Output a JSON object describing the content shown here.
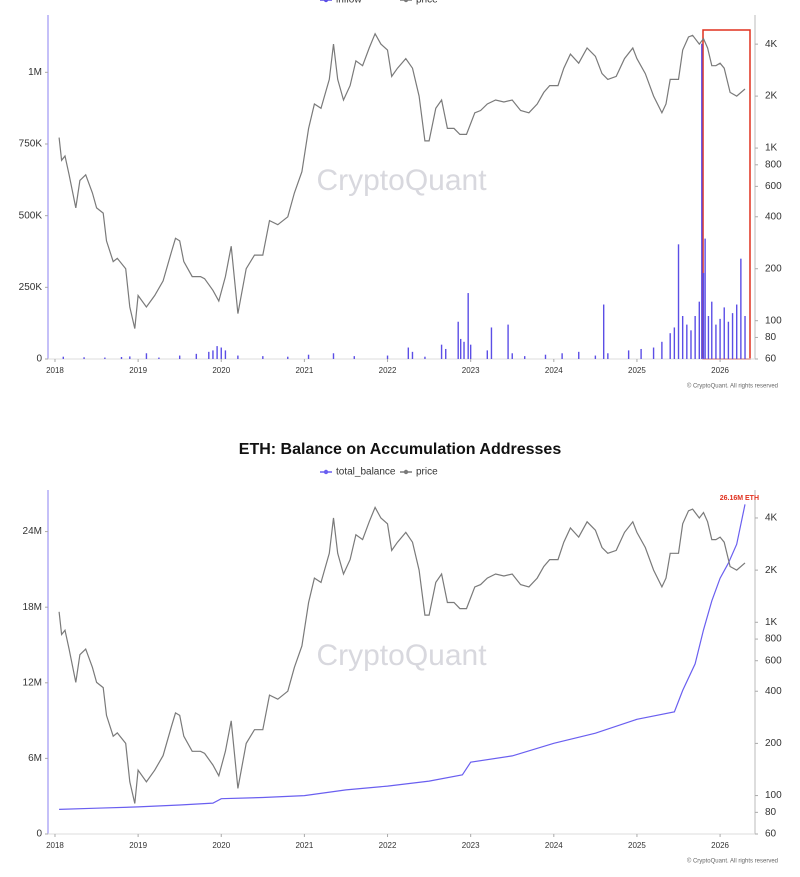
{
  "chart_data": [
    {
      "type": "combo",
      "legend": "top",
      "legend_cut": true,
      "watermark": "CryptoQuant",
      "footer": "© CryptoQuant. All rights reserved",
      "xlim": [
        2017.916,
        2026.42
      ],
      "xticks": [
        2018,
        2019,
        2020,
        2021,
        2022,
        2023,
        2024,
        2025,
        2026
      ],
      "ylim": [
        0,
        1200000
      ],
      "yticks": [
        0,
        {
          "value": 250000,
          "label": "250K"
        },
        {
          "value": 500000,
          "label": "500K"
        },
        {
          "value": 750000,
          "label": "750K"
        },
        {
          "value": 1000000,
          "label": "1M"
        }
      ],
      "y2lim": [
        60,
        5900
      ],
      "y2log": true,
      "y2ticks": [
        60,
        80,
        100,
        200,
        400,
        600,
        800,
        {
          "value": 1000,
          "label": "1K"
        },
        {
          "value": 2000,
          "label": "2K"
        },
        {
          "value": 4000,
          "label": "4K"
        }
      ],
      "series": [
        {
          "name": "inflow",
          "type": "bar",
          "color": "#5b4ee6",
          "x": [
            2018.1,
            2018.35,
            2018.6,
            2018.8,
            2018.9,
            2019.1,
            2019.25,
            2019.5,
            2019.7,
            2019.85,
            2019.9,
            2019.95,
            2020.0,
            2020.05,
            2020.2,
            2020.5,
            2020.8,
            2021.05,
            2021.35,
            2021.6,
            2022.0,
            2022.25,
            2022.3,
            2022.45,
            2022.65,
            2022.7,
            2022.85,
            2022.88,
            2022.92,
            2022.97,
            2023.0,
            2023.2,
            2023.25,
            2023.45,
            2023.5,
            2023.65,
            2023.9,
            2024.1,
            2024.3,
            2024.5,
            2024.6,
            2024.65,
            2024.9,
            2025.05,
            2025.2,
            2025.3,
            2025.4,
            2025.45,
            2025.5,
            2025.55,
            2025.6,
            2025.65,
            2025.7,
            2025.75,
            2025.78,
            2025.8,
            2025.82,
            2025.86,
            2025.9,
            2025.95,
            2026.0,
            2026.05,
            2026.1,
            2026.15,
            2026.2,
            2026.25,
            2026.3
          ],
          "values": [
            8000,
            6000,
            5000,
            7000,
            9000,
            20000,
            5000,
            12000,
            18000,
            25000,
            30000,
            45000,
            40000,
            30000,
            12000,
            10000,
            8000,
            15000,
            20000,
            10000,
            12000,
            40000,
            25000,
            8000,
            50000,
            35000,
            130000,
            70000,
            60000,
            230000,
            50000,
            30000,
            110000,
            120000,
            20000,
            10000,
            15000,
            20000,
            25000,
            12000,
            190000,
            20000,
            30000,
            35000,
            40000,
            60000,
            90000,
            110000,
            400000,
            150000,
            120000,
            100000,
            150000,
            200000,
            1100000,
            300000,
            420000,
            150000,
            200000,
            120000,
            140000,
            180000,
            130000,
            160000,
            190000,
            350000,
            150000
          ]
        },
        {
          "name": "price",
          "type": "line",
          "color": "#7a7a7a",
          "axis": "y2",
          "x": [
            2018.05,
            2018.08,
            2018.12,
            2018.17,
            2018.25,
            2018.3,
            2018.37,
            2018.45,
            2018.5,
            2018.58,
            2018.62,
            2018.7,
            2018.75,
            2018.85,
            2018.9,
            2018.96,
            2019.0,
            2019.1,
            2019.2,
            2019.3,
            2019.4,
            2019.45,
            2019.5,
            2019.55,
            2019.65,
            2019.75,
            2019.8,
            2019.9,
            2019.97,
            2020.05,
            2020.12,
            2020.2,
            2020.3,
            2020.4,
            2020.5,
            2020.58,
            2020.68,
            2020.8,
            2020.88,
            2020.97,
            2021.05,
            2021.12,
            2021.2,
            2021.3,
            2021.35,
            2021.4,
            2021.47,
            2021.55,
            2021.62,
            2021.7,
            2021.78,
            2021.85,
            2021.92,
            2022.0,
            2022.05,
            2022.12,
            2022.22,
            2022.3,
            2022.38,
            2022.45,
            2022.5,
            2022.58,
            2022.65,
            2022.72,
            2022.8,
            2022.87,
            2022.95,
            2023.05,
            2023.12,
            2023.2,
            2023.3,
            2023.4,
            2023.5,
            2023.6,
            2023.7,
            2023.8,
            2023.88,
            2023.95,
            2024.05,
            2024.12,
            2024.2,
            2024.3,
            2024.4,
            2024.5,
            2024.58,
            2024.65,
            2024.75,
            2024.85,
            2024.95,
            2025.0,
            2025.1,
            2025.2,
            2025.3,
            2025.35,
            2025.4,
            2025.5,
            2025.55,
            2025.62,
            2025.67,
            2025.75,
            2025.8,
            2025.85,
            2025.9,
            2025.95,
            2026.0,
            2026.05,
            2026.12,
            2026.2,
            2026.3
          ],
          "values": [
            1150,
            850,
            900,
            700,
            450,
            650,
            700,
            550,
            450,
            420,
            290,
            220,
            230,
            200,
            120,
            90,
            140,
            120,
            140,
            170,
            250,
            300,
            290,
            220,
            180,
            180,
            175,
            150,
            130,
            180,
            270,
            110,
            200,
            240,
            240,
            380,
            360,
            400,
            550,
            730,
            1300,
            1800,
            1700,
            2500,
            4000,
            2500,
            1900,
            2300,
            3200,
            3000,
            3800,
            4600,
            4000,
            3700,
            2600,
            2900,
            3300,
            2900,
            2000,
            1100,
            1100,
            1700,
            1900,
            1300,
            1300,
            1200,
            1200,
            1600,
            1650,
            1800,
            1900,
            1850,
            1900,
            1650,
            1600,
            1800,
            2100,
            2300,
            2300,
            2900,
            3500,
            3100,
            3800,
            3400,
            2700,
            2500,
            2600,
            3300,
            3800,
            3300,
            2700,
            2000,
            1600,
            1800,
            2500,
            2500,
            3700,
            4400,
            4500,
            4000,
            4300,
            3800,
            3000,
            3000,
            3100,
            2900,
            2100,
            2000,
            2200
          ]
        }
      ]
    },
    {
      "type": "combo",
      "title": "ETH: Balance on Accumulation Addresses",
      "legend": "top",
      "watermark": "CryptoQuant",
      "footer": "© CryptoQuant. All rights reserved",
      "annotation": "26.16M ETH",
      "xlim": [
        2017.916,
        2026.42
      ],
      "xticks": [
        2018,
        2019,
        2020,
        2021,
        2022,
        2023,
        2024,
        2025,
        2026
      ],
      "ylim": [
        0,
        27300000
      ],
      "yticks": [
        0,
        {
          "value": 6000000,
          "label": "6M"
        },
        {
          "value": 12000000,
          "label": "12M"
        },
        {
          "value": 18000000,
          "label": "18M"
        },
        {
          "value": 24000000,
          "label": "24M"
        }
      ],
      "y2lim": [
        60,
        5800
      ],
      "y2log": true,
      "y2ticks": [
        60,
        80,
        100,
        200,
        400,
        600,
        800,
        {
          "value": 1000,
          "label": "1K"
        },
        {
          "value": 2000,
          "label": "2K"
        },
        {
          "value": 4000,
          "label": "4K"
        }
      ],
      "series": [
        {
          "name": "total_balance",
          "type": "line",
          "color": "#6a5ff0",
          "x": [
            2018.05,
            2018.5,
            2019.0,
            2019.5,
            2019.9,
            2020.0,
            2020.5,
            2021.0,
            2021.5,
            2022.0,
            2022.5,
            2022.9,
            2023.0,
            2023.5,
            2024.0,
            2024.5,
            2025.0,
            2025.45,
            2025.55,
            2025.7,
            2025.8,
            2025.9,
            2026.0,
            2026.1,
            2026.2,
            2026.3
          ],
          "values": [
            1950000,
            2050000,
            2150000,
            2300000,
            2450000,
            2800000,
            2900000,
            3050000,
            3500000,
            3800000,
            4200000,
            4700000,
            5700000,
            6200000,
            7200000,
            8000000,
            9100000,
            9700000,
            11400000,
            13500000,
            16200000,
            18500000,
            20300000,
            21500000,
            23000000,
            26160000
          ]
        },
        {
          "name": "price",
          "type": "line",
          "color": "#7a7a7a",
          "axis": "y2",
          "x": [
            2018.05,
            2018.08,
            2018.12,
            2018.17,
            2018.25,
            2018.3,
            2018.37,
            2018.45,
            2018.5,
            2018.58,
            2018.62,
            2018.7,
            2018.75,
            2018.85,
            2018.9,
            2018.96,
            2019.0,
            2019.1,
            2019.2,
            2019.3,
            2019.4,
            2019.45,
            2019.5,
            2019.55,
            2019.65,
            2019.75,
            2019.8,
            2019.9,
            2019.97,
            2020.05,
            2020.12,
            2020.2,
            2020.3,
            2020.4,
            2020.5,
            2020.58,
            2020.68,
            2020.8,
            2020.88,
            2020.97,
            2021.05,
            2021.12,
            2021.2,
            2021.3,
            2021.35,
            2021.4,
            2021.47,
            2021.55,
            2021.62,
            2021.7,
            2021.78,
            2021.85,
            2021.92,
            2022.0,
            2022.05,
            2022.12,
            2022.22,
            2022.3,
            2022.38,
            2022.45,
            2022.5,
            2022.58,
            2022.65,
            2022.72,
            2022.8,
            2022.87,
            2022.95,
            2023.05,
            2023.12,
            2023.2,
            2023.3,
            2023.4,
            2023.5,
            2023.6,
            2023.7,
            2023.8,
            2023.88,
            2023.95,
            2024.05,
            2024.12,
            2024.2,
            2024.3,
            2024.4,
            2024.5,
            2024.58,
            2024.65,
            2024.75,
            2024.85,
            2024.95,
            2025.0,
            2025.1,
            2025.2,
            2025.3,
            2025.35,
            2025.4,
            2025.5,
            2025.55,
            2025.62,
            2025.67,
            2025.75,
            2025.8,
            2025.85,
            2025.9,
            2025.95,
            2026.0,
            2026.05,
            2026.12,
            2026.2,
            2026.3
          ],
          "values": [
            1150,
            850,
            900,
            700,
            450,
            650,
            700,
            550,
            450,
            420,
            290,
            220,
            230,
            200,
            120,
            90,
            140,
            120,
            140,
            170,
            250,
            300,
            290,
            220,
            180,
            180,
            175,
            150,
            130,
            180,
            270,
            110,
            200,
            240,
            240,
            380,
            360,
            400,
            550,
            730,
            1300,
            1800,
            1700,
            2500,
            4000,
            2500,
            1900,
            2300,
            3200,
            3000,
            3800,
            4600,
            4000,
            3700,
            2600,
            2900,
            3300,
            2900,
            2000,
            1100,
            1100,
            1700,
            1900,
            1300,
            1300,
            1200,
            1200,
            1600,
            1650,
            1800,
            1900,
            1850,
            1900,
            1650,
            1600,
            1800,
            2100,
            2300,
            2300,
            2900,
            3500,
            3100,
            3800,
            3400,
            2700,
            2500,
            2600,
            3300,
            3800,
            3300,
            2700,
            2000,
            1600,
            1800,
            2500,
            2500,
            3700,
            4400,
            4500,
            4000,
            4300,
            3800,
            3000,
            3000,
            3100,
            2900,
            2100,
            2000,
            2200
          ]
        }
      ]
    }
  ]
}
